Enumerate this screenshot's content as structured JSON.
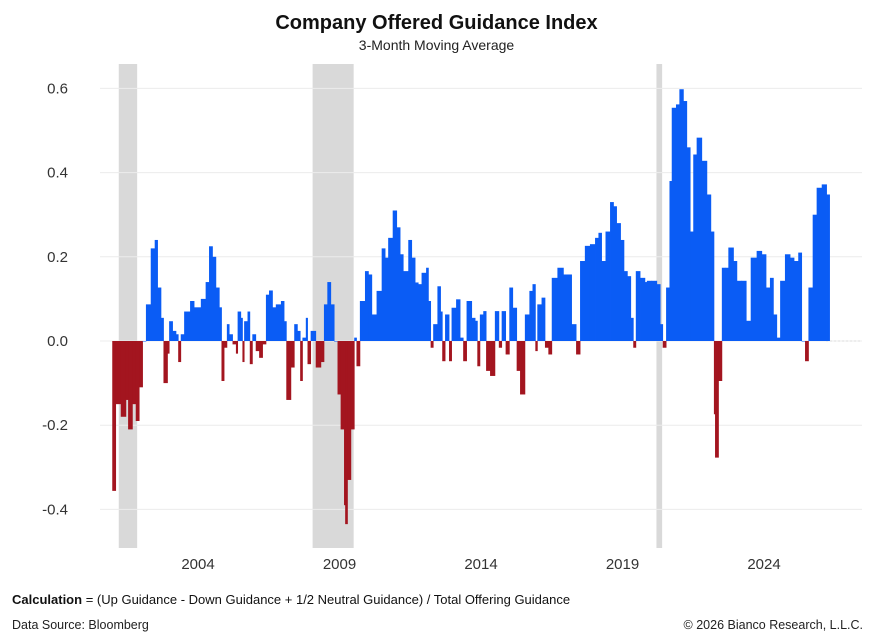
{
  "chart_data": {
    "type": "bar",
    "title": "Company Offered Guidance Index",
    "subtitle": "3-Month Moving Average",
    "xlabel": "",
    "ylabel": "",
    "ylim": [
      -0.5,
      0.65
    ],
    "xlim": [
      2000.1,
      2026.9
    ],
    "yticks": [
      0.6,
      0.4,
      0.2,
      0.0,
      -0.2,
      -0.4
    ],
    "ytick_labels": [
      "0.6",
      "0.4",
      "0.2",
      "0.0",
      "-0.2",
      "-0.4"
    ],
    "xticks": [
      2004,
      2009,
      2014,
      2019,
      2024
    ],
    "xtick_labels": [
      "2004",
      "2009",
      "2014",
      "2019",
      "2024"
    ],
    "grid": true,
    "colors": {
      "positive": "#0a5cf5",
      "negative": "#a3151f",
      "recession": "#d9d9d9"
    },
    "recession_shading": [
      [
        2001.2,
        2001.85
      ],
      [
        2008.05,
        2009.5
      ],
      [
        2020.2,
        2020.4
      ]
    ],
    "points": [
      [
        2000.97,
        -0.356
      ],
      [
        2001.09,
        -0.15
      ],
      [
        2001.27,
        -0.18
      ],
      [
        2001.45,
        -0.14
      ],
      [
        2001.53,
        -0.21
      ],
      [
        2001.68,
        -0.15
      ],
      [
        2001.8,
        -0.19
      ],
      [
        2001.92,
        -0.11
      ],
      [
        2002.04,
        0.0
      ],
      [
        2002.16,
        0.087
      ],
      [
        2002.33,
        0.22
      ],
      [
        2002.47,
        0.24
      ],
      [
        2002.57,
        0.127
      ],
      [
        2002.69,
        0.055
      ],
      [
        2002.78,
        -0.1
      ],
      [
        2002.92,
        -0.03
      ],
      [
        2002.98,
        0.047
      ],
      [
        2003.1,
        0.024
      ],
      [
        2003.22,
        0.016
      ],
      [
        2003.3,
        -0.05
      ],
      [
        2003.39,
        0.016
      ],
      [
        2003.51,
        0.07
      ],
      [
        2003.72,
        0.095
      ],
      [
        2003.86,
        0.08
      ],
      [
        2004.1,
        0.1
      ],
      [
        2004.27,
        0.14
      ],
      [
        2004.39,
        0.225
      ],
      [
        2004.51,
        0.2
      ],
      [
        2004.63,
        0.127
      ],
      [
        2004.75,
        0.08
      ],
      [
        2004.83,
        -0.095
      ],
      [
        2004.92,
        -0.016
      ],
      [
        2005.02,
        0.04
      ],
      [
        2005.1,
        0.016
      ],
      [
        2005.22,
        -0.008
      ],
      [
        2005.34,
        -0.03
      ],
      [
        2005.4,
        0.07
      ],
      [
        2005.51,
        0.055
      ],
      [
        2005.57,
        -0.05
      ],
      [
        2005.63,
        0.047
      ],
      [
        2005.75,
        0.07
      ],
      [
        2005.83,
        -0.055
      ],
      [
        2005.92,
        0.016
      ],
      [
        2006.04,
        -0.024
      ],
      [
        2006.16,
        -0.04
      ],
      [
        2006.28,
        -0.008
      ],
      [
        2006.4,
        0.11
      ],
      [
        2006.51,
        0.12
      ],
      [
        2006.63,
        0.08
      ],
      [
        2006.75,
        0.087
      ],
      [
        2006.93,
        0.095
      ],
      [
        2007.04,
        0.047
      ],
      [
        2007.12,
        -0.14
      ],
      [
        2007.28,
        -0.063
      ],
      [
        2007.4,
        0.04
      ],
      [
        2007.51,
        0.024
      ],
      [
        2007.61,
        -0.095
      ],
      [
        2007.69,
        0.008
      ],
      [
        2007.81,
        0.055
      ],
      [
        2007.87,
        -0.055
      ],
      [
        2007.98,
        0.024
      ],
      [
        2008.16,
        -0.063
      ],
      [
        2008.34,
        -0.05
      ],
      [
        2008.45,
        0.087
      ],
      [
        2008.57,
        0.14
      ],
      [
        2008.69,
        0.087
      ],
      [
        2008.81,
        0.0
      ],
      [
        2008.93,
        -0.127
      ],
      [
        2009.04,
        -0.21
      ],
      [
        2009.16,
        -0.39
      ],
      [
        2009.2,
        -0.435
      ],
      [
        2009.28,
        -0.33
      ],
      [
        2009.4,
        -0.21
      ],
      [
        2009.52,
        0.008
      ],
      [
        2009.6,
        -0.06
      ],
      [
        2009.72,
        0.095
      ],
      [
        2009.9,
        0.166
      ],
      [
        2010.02,
        0.158
      ],
      [
        2010.14,
        0.063
      ],
      [
        2010.31,
        0.119
      ],
      [
        2010.49,
        0.22
      ],
      [
        2010.61,
        0.198
      ],
      [
        2010.72,
        0.245
      ],
      [
        2010.88,
        0.31
      ],
      [
        2011.02,
        0.27
      ],
      [
        2011.14,
        0.206
      ],
      [
        2011.25,
        0.166
      ],
      [
        2011.43,
        0.24
      ],
      [
        2011.55,
        0.198
      ],
      [
        2011.67,
        0.139
      ],
      [
        2011.78,
        0.135
      ],
      [
        2011.9,
        0.162
      ],
      [
        2012.06,
        0.174
      ],
      [
        2012.14,
        0.095
      ],
      [
        2012.22,
        -0.016
      ],
      [
        2012.31,
        0.04
      ],
      [
        2012.46,
        0.13
      ],
      [
        2012.57,
        0.07
      ],
      [
        2012.63,
        -0.048
      ],
      [
        2012.73,
        0.063
      ],
      [
        2012.87,
        -0.048
      ],
      [
        2012.96,
        0.079
      ],
      [
        2013.12,
        0.099
      ],
      [
        2013.26,
        0.008
      ],
      [
        2013.37,
        -0.048
      ],
      [
        2013.49,
        0.095
      ],
      [
        2013.67,
        0.055
      ],
      [
        2013.79,
        0.048
      ],
      [
        2013.87,
        -0.06
      ],
      [
        2013.96,
        0.063
      ],
      [
        2014.08,
        0.071
      ],
      [
        2014.18,
        -0.071
      ],
      [
        2014.32,
        -0.083
      ],
      [
        2014.49,
        0.071
      ],
      [
        2014.63,
        -0.016
      ],
      [
        2014.73,
        0.071
      ],
      [
        2014.87,
        -0.032
      ],
      [
        2015.0,
        0.127
      ],
      [
        2015.12,
        0.079
      ],
      [
        2015.26,
        -0.071
      ],
      [
        2015.38,
        -0.127
      ],
      [
        2015.55,
        0.063
      ],
      [
        2015.71,
        0.119
      ],
      [
        2015.82,
        0.135
      ],
      [
        2015.92,
        -0.024
      ],
      [
        2015.99,
        0.087
      ],
      [
        2016.14,
        0.103
      ],
      [
        2016.26,
        -0.016
      ],
      [
        2016.38,
        -0.032
      ],
      [
        2016.5,
        0.15
      ],
      [
        2016.7,
        0.174
      ],
      [
        2016.91,
        0.158
      ],
      [
        2017.09,
        0.158
      ],
      [
        2017.2,
        0.04
      ],
      [
        2017.36,
        -0.032
      ],
      [
        2017.5,
        0.19
      ],
      [
        2017.67,
        0.226
      ],
      [
        2017.85,
        0.23
      ],
      [
        2018.03,
        0.245
      ],
      [
        2018.15,
        0.257
      ],
      [
        2018.26,
        0.19
      ],
      [
        2018.4,
        0.26
      ],
      [
        2018.56,
        0.33
      ],
      [
        2018.68,
        0.32
      ],
      [
        2018.79,
        0.28
      ],
      [
        2018.93,
        0.24
      ],
      [
        2019.05,
        0.166
      ],
      [
        2019.17,
        0.154
      ],
      [
        2019.29,
        0.055
      ],
      [
        2019.38,
        -0.016
      ],
      [
        2019.47,
        0.166
      ],
      [
        2019.62,
        0.15
      ],
      [
        2019.79,
        0.14
      ],
      [
        2019.86,
        0.143
      ],
      [
        2020.03,
        0.143
      ],
      [
        2020.21,
        0.135
      ],
      [
        2020.33,
        0.04
      ],
      [
        2020.42,
        -0.016
      ],
      [
        2020.54,
        0.127
      ],
      [
        2020.66,
        0.38
      ],
      [
        2020.74,
        0.554
      ],
      [
        2020.89,
        0.562
      ],
      [
        2021.01,
        0.598
      ],
      [
        2021.15,
        0.57
      ],
      [
        2021.27,
        0.46
      ],
      [
        2021.39,
        0.26
      ],
      [
        2021.5,
        0.443
      ],
      [
        2021.62,
        0.483
      ],
      [
        2021.8,
        0.428
      ],
      [
        2021.98,
        0.348
      ],
      [
        2022.12,
        0.26
      ],
      [
        2022.23,
        -0.174
      ],
      [
        2022.27,
        -0.277
      ],
      [
        2022.39,
        -0.095
      ],
      [
        2022.51,
        0.174
      ],
      [
        2022.62,
        0.174
      ],
      [
        2022.74,
        0.222
      ],
      [
        2022.92,
        0.19
      ],
      [
        2023.04,
        0.143
      ],
      [
        2023.21,
        0.143
      ],
      [
        2023.37,
        0.048
      ],
      [
        2023.53,
        0.198
      ],
      [
        2023.74,
        0.214
      ],
      [
        2023.92,
        0.206
      ],
      [
        2024.07,
        0.127
      ],
      [
        2024.21,
        0.15
      ],
      [
        2024.33,
        0.063
      ],
      [
        2024.45,
        0.008
      ],
      [
        2024.57,
        0.143
      ],
      [
        2024.74,
        0.206
      ],
      [
        2024.92,
        0.198
      ],
      [
        2025.06,
        0.19
      ],
      [
        2025.21,
        0.21
      ],
      [
        2025.33,
        0.0
      ],
      [
        2025.45,
        -0.048
      ],
      [
        2025.57,
        0.127
      ],
      [
        2025.72,
        0.3
      ],
      [
        2025.86,
        0.364
      ],
      [
        2026.04,
        0.372
      ],
      [
        2026.21,
        0.348
      ]
    ]
  },
  "footer": {
    "calc_label": "Calculation",
    "calc_text": " = (Up Guidance - Down Guidance + 1/2 Neutral Guidance) / Total Offering Guidance",
    "source": "Data Source: Bloomberg",
    "copyright": "© 2026 Bianco Research, L.L.C."
  }
}
